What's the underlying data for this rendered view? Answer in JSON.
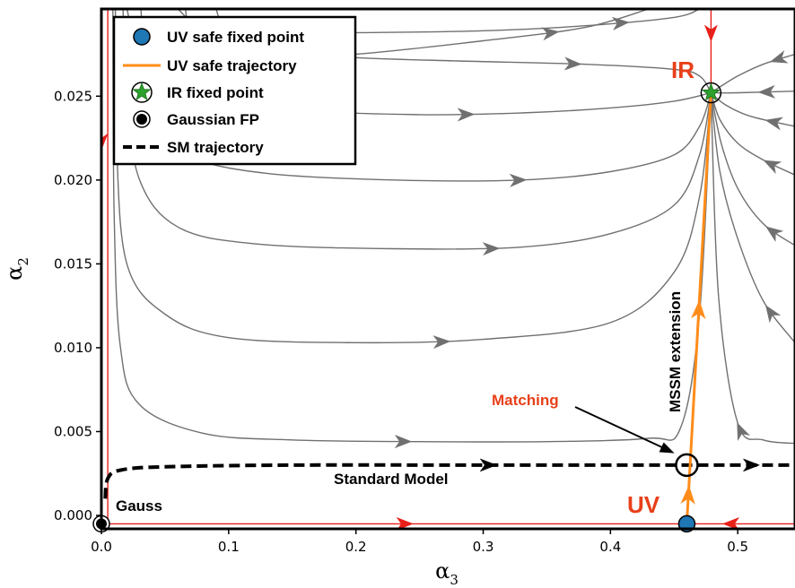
{
  "chart_data": {
    "type": "line",
    "xlabel": "α3",
    "ylabel": "α2",
    "xlim": [
      0,
      0.545
    ],
    "ylim": [
      -0.0008,
      0.0302
    ],
    "xticks": [
      {
        "v": 0.0,
        "label": "0.0"
      },
      {
        "v": 0.1,
        "label": "0.1"
      },
      {
        "v": 0.2,
        "label": "0.2"
      },
      {
        "v": 0.3,
        "label": "0.3"
      },
      {
        "v": 0.4,
        "label": "0.4"
      },
      {
        "v": 0.5,
        "label": "0.5"
      }
    ],
    "yticks": [
      {
        "v": 0.0,
        "label": "0.000"
      },
      {
        "v": 0.005,
        "label": "0.005"
      },
      {
        "v": 0.01,
        "label": "0.010"
      },
      {
        "v": 0.015,
        "label": "0.015"
      },
      {
        "v": 0.02,
        "label": "0.020"
      },
      {
        "v": 0.025,
        "label": "0.025"
      }
    ],
    "grid": false,
    "legend_position": "top-left",
    "legend": [
      {
        "label": "UV safe fixed point",
        "kind": "uv-marker"
      },
      {
        "label": "UV safe trajectory",
        "kind": "line"
      },
      {
        "label": "IR fixed point",
        "kind": "star"
      },
      {
        "label": "Gaussian FP",
        "kind": "gauss-marker"
      },
      {
        "label": "SM trajectory",
        "kind": "dashed"
      }
    ],
    "colors": {
      "flow": "#707070",
      "separatrix": "#e8201a",
      "uv_trajectory": "#ff8c1a",
      "uv_point": "#1f77b4",
      "ir_point": "#2ca02c",
      "sm": "#000000",
      "annotation": "#e8401a"
    },
    "flow_lines": [
      {
        "points": [
          [
            0.02,
            0.0302
          ],
          [
            0.03,
            0.028
          ],
          [
            0.06,
            0.0275
          ],
          [
            0.12,
            0.0272
          ],
          [
            0.2,
            0.0275
          ],
          [
            0.3,
            0.0283
          ],
          [
            0.38,
            0.0291
          ],
          [
            0.43,
            0.0302
          ]
        ],
        "arrows": [
          0.82
        ]
      },
      {
        "points": [
          [
            0.06,
            0.0302
          ],
          [
            0.08,
            0.0292
          ],
          [
            0.14,
            0.0288
          ],
          [
            0.22,
            0.0288
          ],
          [
            0.3,
            0.0289
          ],
          [
            0.38,
            0.0292
          ],
          [
            0.45,
            0.0297
          ],
          [
            0.47,
            0.0302
          ]
        ],
        "arrows": [
          0.85
        ]
      },
      {
        "points": [
          [
            0.09,
            0.0302
          ],
          [
            0.1,
            0.0286
          ],
          [
            0.13,
            0.0277
          ],
          [
            0.2,
            0.0273
          ],
          [
            0.28,
            0.0271
          ],
          [
            0.38,
            0.0269
          ],
          [
            0.45,
            0.0266
          ],
          [
            0.47,
            0.0262
          ],
          [
            0.479,
            0.0252
          ]
        ],
        "arrows": [
          0.72
        ]
      },
      {
        "points": [
          [
            0.545,
            0.0275
          ],
          [
            0.52,
            0.0269
          ],
          [
            0.5,
            0.0262
          ],
          [
            0.485,
            0.0255
          ],
          [
            0.479,
            0.0252
          ]
        ],
        "arrows": [
          0.2
        ]
      },
      {
        "points": [
          [
            0.545,
            0.0253
          ],
          [
            0.5,
            0.0252
          ],
          [
            0.479,
            0.0252
          ]
        ],
        "arrows": [
          0.35
        ]
      },
      {
        "points": [
          [
            0.066,
            0.0302
          ],
          [
            0.073,
            0.0275
          ],
          [
            0.1,
            0.0253
          ],
          [
            0.16,
            0.0242
          ],
          [
            0.25,
            0.0239
          ],
          [
            0.33,
            0.024
          ],
          [
            0.4,
            0.0243
          ],
          [
            0.45,
            0.0247
          ],
          [
            0.479,
            0.0252
          ]
        ],
        "arrows": [
          0.58
        ]
      },
      {
        "points": [
          [
            0.545,
            0.0232
          ],
          [
            0.51,
            0.0238
          ],
          [
            0.49,
            0.0245
          ],
          [
            0.479,
            0.0252
          ]
        ],
        "arrows": [
          0.25
        ]
      },
      {
        "points": [
          [
            0.031,
            0.0302
          ],
          [
            0.035,
            0.027
          ],
          [
            0.045,
            0.0236
          ],
          [
            0.07,
            0.0214
          ],
          [
            0.13,
            0.0204
          ],
          [
            0.23,
            0.02
          ],
          [
            0.33,
            0.02
          ],
          [
            0.4,
            0.0205
          ],
          [
            0.45,
            0.0215
          ],
          [
            0.47,
            0.0232
          ],
          [
            0.479,
            0.0252
          ]
        ],
        "arrows": [
          0.68
        ]
      },
      {
        "points": [
          [
            0.545,
            0.0203
          ],
          [
            0.52,
            0.0212
          ],
          [
            0.5,
            0.0222
          ],
          [
            0.486,
            0.0236
          ],
          [
            0.479,
            0.0252
          ]
        ],
        "arrows": [
          0.22
        ]
      },
      {
        "points": [
          [
            0.017,
            0.0302
          ],
          [
            0.02,
            0.025
          ],
          [
            0.03,
            0.02
          ],
          [
            0.06,
            0.0172
          ],
          [
            0.12,
            0.0162
          ],
          [
            0.23,
            0.0159
          ],
          [
            0.33,
            0.016
          ],
          [
            0.4,
            0.0168
          ],
          [
            0.45,
            0.0185
          ],
          [
            0.47,
            0.0215
          ],
          [
            0.479,
            0.0252
          ]
        ],
        "arrows": [
          0.64
        ]
      },
      {
        "points": [
          [
            0.545,
            0.0161
          ],
          [
            0.52,
            0.0174
          ],
          [
            0.5,
            0.0195
          ],
          [
            0.487,
            0.0222
          ],
          [
            0.479,
            0.0252
          ]
        ],
        "arrows": [
          0.15
        ]
      },
      {
        "points": [
          [
            0.011,
            0.0302
          ],
          [
            0.012,
            0.022
          ],
          [
            0.02,
            0.015
          ],
          [
            0.05,
            0.012
          ],
          [
            0.1,
            0.0106
          ],
          [
            0.2,
            0.0103
          ],
          [
            0.3,
            0.0105
          ],
          [
            0.4,
            0.0115
          ],
          [
            0.45,
            0.0145
          ],
          [
            0.47,
            0.019
          ],
          [
            0.479,
            0.0252
          ]
        ],
        "arrows": [
          0.58
        ]
      },
      {
        "points": [
          [
            0.545,
            0.0103
          ],
          [
            0.52,
            0.0128
          ],
          [
            0.5,
            0.0165
          ],
          [
            0.486,
            0.0205
          ],
          [
            0.479,
            0.0252
          ]
        ],
        "arrows": [
          0.15
        ]
      },
      {
        "points": [
          [
            0.009,
            0.0302
          ],
          [
            0.01,
            0.018
          ],
          [
            0.015,
            0.01
          ],
          [
            0.03,
            0.0066
          ],
          [
            0.08,
            0.0049
          ],
          [
            0.15,
            0.0045
          ],
          [
            0.25,
            0.0044
          ],
          [
            0.35,
            0.0044
          ],
          [
            0.43,
            0.0046
          ],
          [
            0.455,
            0.0052
          ],
          [
            0.47,
            0.012
          ],
          [
            0.479,
            0.0252
          ]
        ],
        "arrows": [
          0.52
        ]
      },
      {
        "points": [
          [
            0.545,
            0.0043
          ],
          [
            0.52,
            0.0045
          ],
          [
            0.5,
            0.0055
          ],
          [
            0.485,
            0.013
          ],
          [
            0.479,
            0.0252
          ]
        ],
        "arrows": [
          0.15
        ]
      }
    ],
    "separatrices": [
      {
        "points": [
          [
            0.0,
            0.0302
          ],
          [
            0.0,
            -0.0005
          ]
        ],
        "arrows": [
          0.26
        ]
      },
      {
        "points": [
          [
            0.005,
            0.0302
          ],
          [
            0.005,
            -0.0003
          ]
        ],
        "arrows": []
      },
      {
        "points": [
          [
            0.0,
            -0.0005
          ],
          [
            0.46,
            -0.0005
          ]
        ],
        "arrows": [
          0.52
        ]
      },
      {
        "points": [
          [
            0.545,
            -0.0005
          ],
          [
            0.46,
            -0.0005
          ]
        ],
        "arrows": [
          0.6
        ]
      },
      {
        "points": [
          [
            0.479,
            0.0302
          ],
          [
            0.479,
            0.0252
          ]
        ],
        "arrows": [
          0.3
        ]
      }
    ],
    "uv_trajectory": {
      "points": [
        [
          0.46,
          -0.0005
        ],
        [
          0.479,
          0.0252
        ]
      ],
      "arrows": [
        0.07,
        0.5
      ]
    },
    "sm_trajectory": {
      "points": [
        [
          0.003,
          0.001
        ],
        [
          0.005,
          0.0022
        ],
        [
          0.015,
          0.0027
        ],
        [
          0.05,
          0.0029
        ],
        [
          0.15,
          0.003
        ],
        [
          0.3,
          0.003
        ],
        [
          0.46,
          0.003
        ],
        [
          0.545,
          0.003
        ]
      ],
      "arrows": [
        0.57,
        0.94
      ]
    },
    "uv_fixed_point": {
      "x": 0.46,
      "y": -0.0005
    },
    "ir_fixed_point": {
      "x": 0.479,
      "y": 0.0252
    },
    "gaussian_fixed_point": {
      "x": 0.0,
      "y": -0.0005
    },
    "matching_point": {
      "x": 0.46,
      "y": 0.003
    },
    "annotations": {
      "gauss": "Gauss",
      "standard_model": "Standard Model",
      "matching": "Matching",
      "uv": "UV",
      "ir": "IR",
      "mssm": "MSSM extension"
    }
  }
}
